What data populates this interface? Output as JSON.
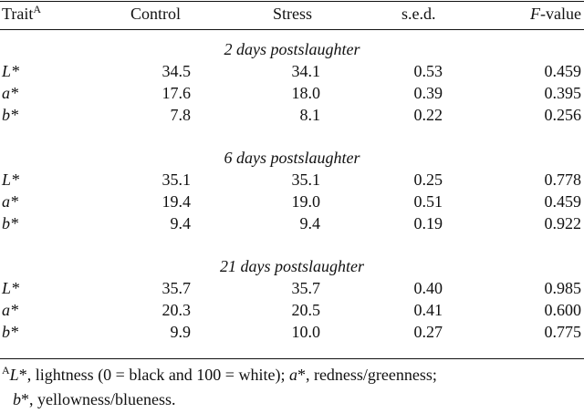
{
  "header": {
    "trait": "Trait",
    "trait_sup": "A",
    "control": "Control",
    "stress": "Stress",
    "sed": "s.e.d.",
    "f_italic": "F",
    "f_rest": "-value"
  },
  "sections": [
    {
      "title": "2 days postslaughter",
      "rows": [
        {
          "trait": "L*",
          "control": "34.5",
          "stress": "34.1",
          "sed": "0.53",
          "f": "0.459"
        },
        {
          "trait": "a*",
          "control": "17.6",
          "stress": "18.0",
          "sed": "0.39",
          "f": "0.395"
        },
        {
          "trait": "b*",
          "control": "7.8",
          "stress": "8.1",
          "sed": "0.22",
          "f": "0.256"
        }
      ]
    },
    {
      "title": "6 days postslaughter",
      "rows": [
        {
          "trait": "L*",
          "control": "35.1",
          "stress": "35.1",
          "sed": "0.25",
          "f": "0.778"
        },
        {
          "trait": "a*",
          "control": "19.4",
          "stress": "19.0",
          "sed": "0.51",
          "f": "0.459"
        },
        {
          "trait": "b*",
          "control": "9.4",
          "stress": "9.4",
          "sed": "0.19",
          "f": "0.922"
        }
      ]
    },
    {
      "title": "21 days postslaughter",
      "rows": [
        {
          "trait": "L*",
          "control": "35.7",
          "stress": "35.7",
          "sed": "0.40",
          "f": "0.985"
        },
        {
          "trait": "a*",
          "control": "20.3",
          "stress": "20.5",
          "sed": "0.41",
          "f": "0.600"
        },
        {
          "trait": "b*",
          "control": "9.9",
          "stress": "10.0",
          "sed": "0.27",
          "f": "0.775"
        }
      ]
    }
  ],
  "footnote": {
    "marker": "A",
    "l_sym": "L",
    "l_text": "*, lightness (0 = black and 100 = white); ",
    "a_sym": "a",
    "a_text": "*, redness/greenness;",
    "b_sym": "b",
    "b_text": "*, yellowness/blueness."
  }
}
